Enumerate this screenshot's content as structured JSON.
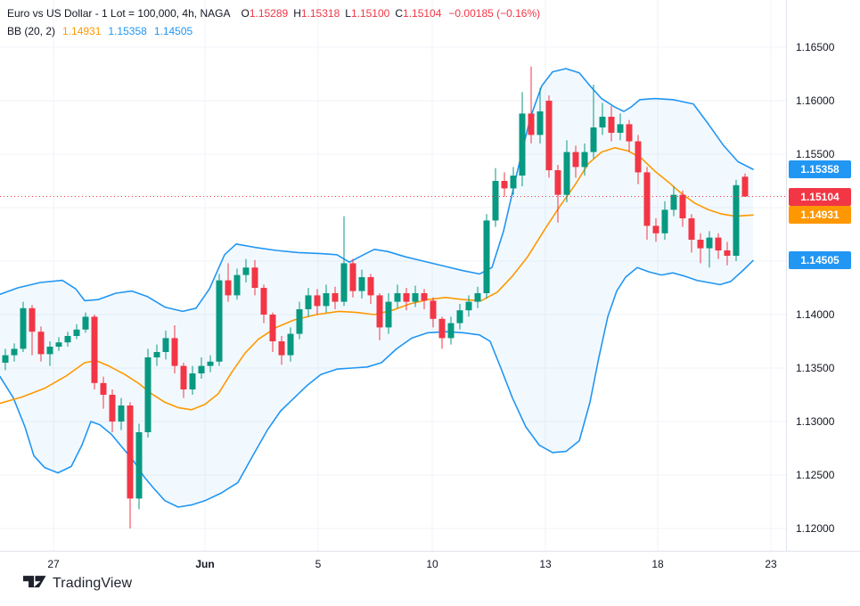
{
  "header": {
    "title": "Euro vs US Dollar - 1 Lot = 100,000, 4h, NAGA",
    "ohlc": {
      "o_label": "O",
      "o": "1.15289",
      "h_label": "H",
      "h": "1.15318",
      "l_label": "L",
      "l": "1.15100",
      "c_label": "C",
      "c": "1.15104",
      "change": "−0.00185 (−0.16%)"
    },
    "indicator": {
      "label": "BB (20, 2)",
      "basis": "1.14931",
      "upper": "1.15358",
      "lower": "1.14505"
    }
  },
  "watermark": {
    "brand": "TradingView"
  },
  "colors": {
    "up": "#089981",
    "down": "#f23645",
    "band_line": "#2196f3",
    "band_fill": "rgba(33,150,243,0.06)",
    "basis_line": "#ff9800",
    "grid": "#f0f3fa",
    "axis_border": "#e0e3eb",
    "text": "#131722",
    "price_line": "#f23645",
    "badge_upper": "#2196f3",
    "badge_close": "#f23645",
    "badge_basis": "#ff9800",
    "badge_lower": "#2196f3"
  },
  "axes": {
    "y_ticks": [
      "1.16500",
      "1.16000",
      "1.15500",
      "1.15000",
      "1.14500",
      "1.14000",
      "1.13500",
      "1.13000",
      "1.12500",
      "1.12000"
    ],
    "x_ticks": [
      {
        "label": "27",
        "px": 60,
        "bold": false
      },
      {
        "label": "Jun",
        "px": 230,
        "bold": true
      },
      {
        "label": "5",
        "px": 357,
        "bold": false
      },
      {
        "label": "10",
        "px": 485,
        "bold": false
      },
      {
        "label": "13",
        "px": 612,
        "bold": false
      },
      {
        "label": "18",
        "px": 738,
        "bold": false
      },
      {
        "label": "23",
        "px": 865,
        "bold": false
      }
    ],
    "badges": [
      {
        "name": "bb-upper-price-badge",
        "value": "1.15358",
        "price": 1.15358,
        "color_key": "badge_upper"
      },
      {
        "name": "last-price-badge",
        "value": "1.15104",
        "price": 1.15104,
        "color_key": "badge_close"
      },
      {
        "name": "bb-basis-price-badge",
        "value": "1.14931",
        "price": 1.14931,
        "color_key": "badge_basis"
      },
      {
        "name": "bb-lower-price-badge",
        "value": "1.14505",
        "price": 1.14505,
        "color_key": "badge_lower"
      }
    ]
  },
  "chart_data": {
    "type": "candlestick",
    "title": "Euro vs US Dollar - 1 Lot = 100,000, 4h, NAGA",
    "indicator": "Bollinger Bands BB (20, 2)",
    "timeframe": "4h",
    "last_candle": {
      "open": 1.15289,
      "high": 1.15318,
      "low": 1.151,
      "close": 1.15104,
      "change": -0.00185,
      "change_pct": -0.16
    },
    "bb_last": {
      "basis": 1.14931,
      "upper": 1.15358,
      "lower": 1.14505
    },
    "price_line": 1.15104,
    "y_axis": {
      "min": 1.12,
      "max": 1.165,
      "tick_step": 0.005
    },
    "x_axis_labels": [
      "27",
      "Jun",
      "5",
      "10",
      "13",
      "18",
      "23"
    ],
    "candles": [
      [
        1.1355,
        1.1368,
        1.1348,
        1.1362
      ],
      [
        1.1362,
        1.1373,
        1.1356,
        1.1368
      ],
      [
        1.1368,
        1.1412,
        1.1365,
        1.1406
      ],
      [
        1.1406,
        1.1409,
        1.1362,
        1.1384
      ],
      [
        1.1384,
        1.1389,
        1.1356,
        1.1363
      ],
      [
        1.1363,
        1.1375,
        1.1352,
        1.137
      ],
      [
        1.137,
        1.1379,
        1.1366,
        1.1374
      ],
      [
        1.1374,
        1.1384,
        1.137,
        1.138
      ],
      [
        1.138,
        1.1391,
        1.1377,
        1.1386
      ],
      [
        1.1386,
        1.1402,
        1.1383,
        1.1398
      ],
      [
        1.1398,
        1.14,
        1.133,
        1.1336
      ],
      [
        1.1336,
        1.1342,
        1.1312,
        1.1325
      ],
      [
        1.1325,
        1.133,
        1.129,
        1.13
      ],
      [
        1.13,
        1.1322,
        1.1292,
        1.1315
      ],
      [
        1.1315,
        1.1318,
        1.12,
        1.1228
      ],
      [
        1.1228,
        1.1298,
        1.1218,
        1.129
      ],
      [
        1.129,
        1.1368,
        1.1285,
        1.136
      ],
      [
        1.136,
        1.1372,
        1.1352,
        1.1365
      ],
      [
        1.1365,
        1.1385,
        1.1358,
        1.1378
      ],
      [
        1.1378,
        1.139,
        1.1345,
        1.1352
      ],
      [
        1.1352,
        1.1355,
        1.1322,
        1.133
      ],
      [
        1.133,
        1.1352,
        1.1325,
        1.1345
      ],
      [
        1.1345,
        1.136,
        1.134,
        1.1352
      ],
      [
        1.1352,
        1.1362,
        1.1346,
        1.1356
      ],
      [
        1.1356,
        1.1438,
        1.1352,
        1.1432
      ],
      [
        1.1432,
        1.1448,
        1.1412,
        1.1418
      ],
      [
        1.1418,
        1.1443,
        1.1414,
        1.1437
      ],
      [
        1.1437,
        1.1452,
        1.143,
        1.1444
      ],
      [
        1.1444,
        1.1451,
        1.1418,
        1.1425
      ],
      [
        1.1425,
        1.1428,
        1.1392,
        1.14
      ],
      [
        1.14,
        1.1402,
        1.1365,
        1.1375
      ],
      [
        1.1375,
        1.138,
        1.1353,
        1.1362
      ],
      [
        1.1362,
        1.1388,
        1.1356,
        1.1382
      ],
      [
        1.1382,
        1.1412,
        1.1377,
        1.1405
      ],
      [
        1.1405,
        1.1425,
        1.1398,
        1.1418
      ],
      [
        1.1418,
        1.1424,
        1.14,
        1.1408
      ],
      [
        1.1408,
        1.1428,
        1.1402,
        1.142
      ],
      [
        1.142,
        1.1426,
        1.1405,
        1.1412
      ],
      [
        1.1412,
        1.1492,
        1.1408,
        1.1448
      ],
      [
        1.1448,
        1.1452,
        1.1416,
        1.1422
      ],
      [
        1.1422,
        1.1442,
        1.1415,
        1.1435
      ],
      [
        1.1435,
        1.1438,
        1.141,
        1.1418
      ],
      [
        1.1418,
        1.142,
        1.1376,
        1.1388
      ],
      [
        1.1388,
        1.142,
        1.1382,
        1.1412
      ],
      [
        1.1412,
        1.1428,
        1.1406,
        1.142
      ],
      [
        1.142,
        1.1425,
        1.1404,
        1.1412
      ],
      [
        1.1412,
        1.1427,
        1.1407,
        1.142
      ],
      [
        1.142,
        1.1424,
        1.1405,
        1.1413
      ],
      [
        1.1413,
        1.1416,
        1.1388,
        1.1396
      ],
      [
        1.1396,
        1.1398,
        1.1368,
        1.1378
      ],
      [
        1.1378,
        1.1398,
        1.1372,
        1.1392
      ],
      [
        1.1392,
        1.141,
        1.1386,
        1.1404
      ],
      [
        1.1404,
        1.1418,
        1.1398,
        1.1412
      ],
      [
        1.1412,
        1.1426,
        1.1406,
        1.142
      ],
      [
        1.142,
        1.1494,
        1.1415,
        1.1488
      ],
      [
        1.1488,
        1.1537,
        1.1482,
        1.1525
      ],
      [
        1.1525,
        1.1533,
        1.151,
        1.1518
      ],
      [
        1.1518,
        1.1538,
        1.1512,
        1.153
      ],
      [
        1.153,
        1.1608,
        1.152,
        1.1588
      ],
      [
        1.1588,
        1.1632,
        1.156,
        1.1568
      ],
      [
        1.1568,
        1.1612,
        1.156,
        1.159
      ],
      [
        1.16,
        1.1605,
        1.1528,
        1.1535
      ],
      [
        1.1535,
        1.154,
        1.1486,
        1.1512
      ],
      [
        1.1512,
        1.1563,
        1.1505,
        1.1552
      ],
      [
        1.1552,
        1.1558,
        1.1528,
        1.1538
      ],
      [
        1.1538,
        1.156,
        1.153,
        1.1552
      ],
      [
        1.1552,
        1.1615,
        1.1546,
        1.1575
      ],
      [
        1.1575,
        1.1598,
        1.1568,
        1.1585
      ],
      [
        1.1585,
        1.1595,
        1.1562,
        1.157
      ],
      [
        1.157,
        1.1588,
        1.1563,
        1.1578
      ],
      [
        1.1578,
        1.1582,
        1.1552,
        1.1562
      ],
      [
        1.1562,
        1.1568,
        1.1522,
        1.1533
      ],
      [
        1.1533,
        1.1538,
        1.147,
        1.1483
      ],
      [
        1.1483,
        1.149,
        1.1468,
        1.1476
      ],
      [
        1.1476,
        1.1506,
        1.147,
        1.1498
      ],
      [
        1.1498,
        1.152,
        1.1492,
        1.1512
      ],
      [
        1.1512,
        1.1516,
        1.1482,
        1.149
      ],
      [
        1.149,
        1.1494,
        1.1458,
        1.147
      ],
      [
        1.147,
        1.1476,
        1.1448,
        1.1462
      ],
      [
        1.1462,
        1.1478,
        1.1444,
        1.1472
      ],
      [
        1.1472,
        1.1476,
        1.1452,
        1.146
      ],
      [
        1.146,
        1.1468,
        1.1446,
        1.1455
      ],
      [
        1.1455,
        1.1526,
        1.145,
        1.1521
      ],
      [
        1.15289,
        1.15318,
        1.151,
        1.15104
      ]
    ],
    "bb_upper": [
      [
        0,
        1.1419
      ],
      [
        20,
        1.1425
      ],
      [
        45,
        1.143
      ],
      [
        70,
        1.1432
      ],
      [
        85,
        1.1424
      ],
      [
        95,
        1.1413
      ],
      [
        110,
        1.1414
      ],
      [
        130,
        1.142
      ],
      [
        148,
        1.1422
      ],
      [
        165,
        1.1417
      ],
      [
        185,
        1.1407
      ],
      [
        205,
        1.1403
      ],
      [
        220,
        1.1406
      ],
      [
        235,
        1.1424
      ],
      [
        252,
        1.1456
      ],
      [
        265,
        1.1466
      ],
      [
        285,
        1.1463
      ],
      [
        310,
        1.146
      ],
      [
        335,
        1.1458
      ],
      [
        360,
        1.1457
      ],
      [
        378,
        1.1456
      ],
      [
        392,
        1.1449
      ],
      [
        408,
        1.1456
      ],
      [
        420,
        1.1461
      ],
      [
        435,
        1.1459
      ],
      [
        455,
        1.1454
      ],
      [
        475,
        1.145
      ],
      [
        500,
        1.1445
      ],
      [
        520,
        1.1441
      ],
      [
        538,
        1.1438
      ],
      [
        552,
        1.1444
      ],
      [
        565,
        1.1478
      ],
      [
        580,
        1.1532
      ],
      [
        595,
        1.1584
      ],
      [
        608,
        1.1614
      ],
      [
        620,
        1.1627
      ],
      [
        635,
        1.163
      ],
      [
        650,
        1.1626
      ],
      [
        662,
        1.1614
      ],
      [
        675,
        1.1602
      ],
      [
        690,
        1.1594
      ],
      [
        700,
        1.159
      ],
      [
        708,
        1.1594
      ],
      [
        718,
        1.1601
      ],
      [
        735,
        1.1602
      ],
      [
        755,
        1.1601
      ],
      [
        778,
        1.1597
      ],
      [
        795,
        1.1578
      ],
      [
        812,
        1.1558
      ],
      [
        828,
        1.1543
      ],
      [
        845,
        1.15358
      ]
    ],
    "bb_basis": [
      [
        0,
        1.1317
      ],
      [
        25,
        1.1323
      ],
      [
        50,
        1.1331
      ],
      [
        75,
        1.1343
      ],
      [
        95,
        1.1355
      ],
      [
        108,
        1.1357
      ],
      [
        122,
        1.1352
      ],
      [
        140,
        1.1344
      ],
      [
        155,
        1.1336
      ],
      [
        170,
        1.1326
      ],
      [
        185,
        1.1318
      ],
      [
        200,
        1.1313
      ],
      [
        215,
        1.1311
      ],
      [
        230,
        1.1316
      ],
      [
        245,
        1.1326
      ],
      [
        260,
        1.1346
      ],
      [
        275,
        1.1364
      ],
      [
        290,
        1.1377
      ],
      [
        310,
        1.1388
      ],
      [
        330,
        1.1395
      ],
      [
        355,
        1.14
      ],
      [
        380,
        1.1403
      ],
      [
        400,
        1.1402
      ],
      [
        420,
        1.14
      ],
      [
        440,
        1.1404
      ],
      [
        460,
        1.141
      ],
      [
        480,
        1.1414
      ],
      [
        500,
        1.1416
      ],
      [
        520,
        1.1414
      ],
      [
        540,
        1.1413
      ],
      [
        558,
        1.1421
      ],
      [
        575,
        1.1436
      ],
      [
        592,
        1.1454
      ],
      [
        610,
        1.1478
      ],
      [
        628,
        1.1501
      ],
      [
        645,
        1.1521
      ],
      [
        660,
        1.1541
      ],
      [
        675,
        1.1552
      ],
      [
        690,
        1.1556
      ],
      [
        705,
        1.1553
      ],
      [
        720,
        1.1546
      ],
      [
        735,
        1.1534
      ],
      [
        750,
        1.1524
      ],
      [
        765,
        1.1513
      ],
      [
        780,
        1.1504
      ],
      [
        795,
        1.1498
      ],
      [
        810,
        1.1494
      ],
      [
        825,
        1.1492
      ],
      [
        845,
        1.14931
      ]
    ],
    "bb_lower": [
      [
        0,
        1.1342
      ],
      [
        15,
        1.1322
      ],
      [
        28,
        1.1295
      ],
      [
        38,
        1.1268
      ],
      [
        50,
        1.1257
      ],
      [
        65,
        1.1252
      ],
      [
        80,
        1.1258
      ],
      [
        92,
        1.1278
      ],
      [
        102,
        1.13
      ],
      [
        112,
        1.1297
      ],
      [
        125,
        1.1288
      ],
      [
        138,
        1.1275
      ],
      [
        150,
        1.1263
      ],
      [
        162,
        1.1248
      ],
      [
        172,
        1.1238
      ],
      [
        185,
        1.1226
      ],
      [
        200,
        1.122
      ],
      [
        215,
        1.1222
      ],
      [
        230,
        1.1226
      ],
      [
        248,
        1.1233
      ],
      [
        267,
        1.1243
      ],
      [
        285,
        1.127
      ],
      [
        300,
        1.1292
      ],
      [
        315,
        1.131
      ],
      [
        330,
        1.1322
      ],
      [
        345,
        1.1334
      ],
      [
        360,
        1.1344
      ],
      [
        378,
        1.1349
      ],
      [
        395,
        1.135
      ],
      [
        412,
        1.1351
      ],
      [
        428,
        1.1355
      ],
      [
        445,
        1.1368
      ],
      [
        462,
        1.1378
      ],
      [
        480,
        1.1383
      ],
      [
        500,
        1.1384
      ],
      [
        520,
        1.1383
      ],
      [
        538,
        1.1381
      ],
      [
        550,
        1.1375
      ],
      [
        562,
        1.135
      ],
      [
        575,
        1.1322
      ],
      [
        590,
        1.1295
      ],
      [
        605,
        1.1278
      ],
      [
        620,
        1.1271
      ],
      [
        635,
        1.1272
      ],
      [
        650,
        1.1282
      ],
      [
        662,
        1.1318
      ],
      [
        672,
        1.136
      ],
      [
        682,
        1.1398
      ],
      [
        692,
        1.1422
      ],
      [
        702,
        1.1435
      ],
      [
        715,
        1.1444
      ],
      [
        728,
        1.144
      ],
      [
        742,
        1.1437
      ],
      [
        755,
        1.1439
      ],
      [
        768,
        1.1436
      ],
      [
        782,
        1.1432
      ],
      [
        795,
        1.143
      ],
      [
        808,
        1.1428
      ],
      [
        820,
        1.1431
      ],
      [
        832,
        1.144
      ],
      [
        845,
        1.14505
      ]
    ]
  }
}
